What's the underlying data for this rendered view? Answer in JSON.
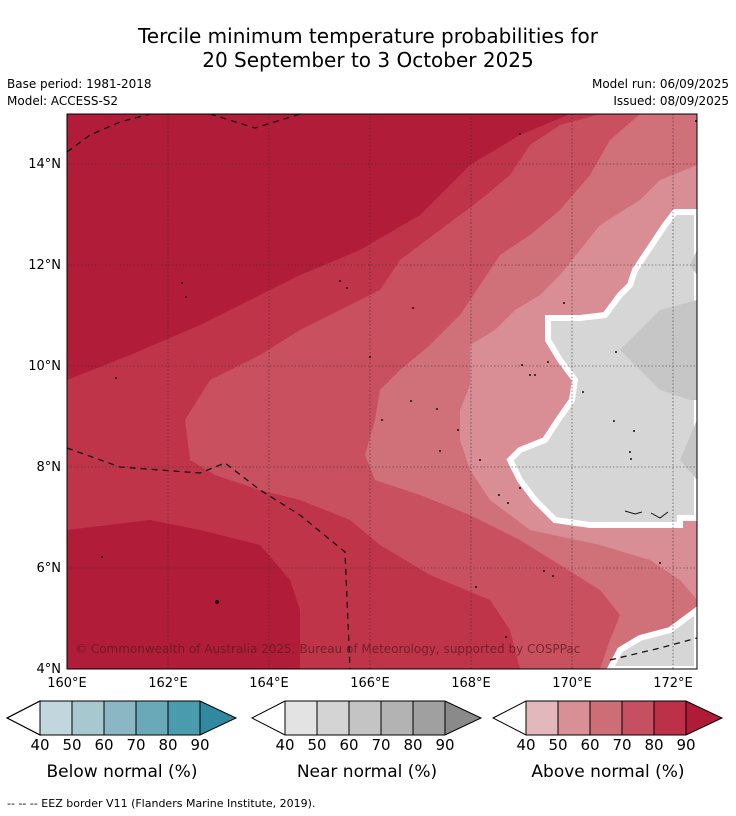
{
  "title_line1": "Tercile minimum temperature probabilities for",
  "title_line2": "20 September to 3 October 2025",
  "base_period": "Base period: 1981-2018",
  "model": "Model: ACCESS-S2",
  "model_run": "Model run: 06/09/2025",
  "issued": "Issued: 08/09/2025",
  "map": {
    "lat_labels": [
      "14°N",
      "12°N",
      "10°N",
      "8°N",
      "6°N",
      "4°N"
    ],
    "lon_labels": [
      "160°E",
      "162°E",
      "164°E",
      "166°E",
      "168°E",
      "170°E",
      "172°E"
    ],
    "copyright": "© Commonwealth of Australia 2025, Bureau of Meteorology, supported by COSPPac",
    "colors": {
      "above_90": "#b11c38",
      "above_80": "#bf3449",
      "above_70": "#c9505f",
      "above_60": "#d07079",
      "above_50": "#d98d94",
      "near_40": "#d6d6d6",
      "near_50": "#c6c6c6"
    }
  },
  "colorbars": [
    {
      "label": "Below normal (%)",
      "ticks": [
        "40",
        "50",
        "60",
        "70",
        "80",
        "90"
      ],
      "colors": [
        "#c1d6dd",
        "#a7c8cf",
        "#8ab7c3",
        "#6aa9b8",
        "#4b9bae",
        "#30899f"
      ]
    },
    {
      "label": "Near normal (%)",
      "ticks": [
        "40",
        "50",
        "60",
        "70",
        "80",
        "90"
      ],
      "colors": [
        "#e3e3e3",
        "#d4d4d4",
        "#c4c4c4",
        "#b3b3b3",
        "#a0a0a0",
        "#8a8a8a"
      ]
    },
    {
      "label": "Above normal (%)",
      "ticks": [
        "40",
        "50",
        "60",
        "70",
        "80",
        "90"
      ],
      "colors": [
        "#e3b8bd",
        "#d98f96",
        "#cd6e77",
        "#c65062",
        "#bd3148",
        "#b01c38"
      ]
    }
  ],
  "footer": "-- -- -- EEZ border V11 (Flanders Marine Institute, 2019)."
}
